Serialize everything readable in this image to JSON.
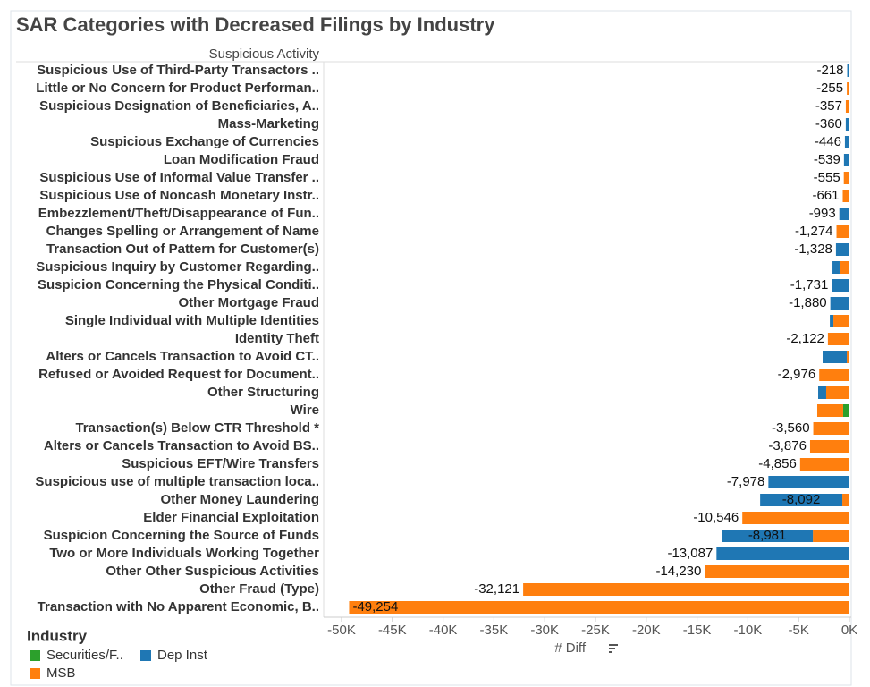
{
  "chart_data": {
    "type": "stacked_hbar",
    "title": "SAR Categories with Decreased Filings by Industry",
    "category_header": "Suspicious Activity",
    "x_label": "# Diff",
    "legend_title": "Industry",
    "categories": [
      "Suspicious Use of Third-Party Transactors ..",
      "Little or No Concern for Product Performan..",
      "Suspicious Designation of Beneficiaries, A..",
      "Mass-Marketing",
      "Suspicious Exchange of Currencies",
      "Loan Modification Fraud",
      "Suspicious Use of Informal Value Transfer ..",
      "Suspicious Use of Noncash Monetary Instr..",
      "Embezzlement/Theft/Disappearance of Fun..",
      "Changes Spelling or Arrangement of Name",
      "Transaction Out of Pattern for Customer(s)",
      "Suspicious Inquiry by Customer Regarding..",
      "Suspicion Concerning the Physical Conditi..",
      "Other Mortgage Fraud",
      "Single Individual with Multiple Identities",
      "Identity Theft",
      "Alters or Cancels Transaction to Avoid CT..",
      "Refused or Avoided Request for Document..",
      "Other Structuring",
      "Wire",
      "Transaction(s) Below CTR Threshold *",
      "Alters or Cancels Transaction to Avoid BS..",
      "Suspicious EFT/Wire Transfers",
      "Suspicious use of multiple transaction loca..",
      "Other Money Laundering",
      "Elder Financial Exploitation",
      "Suspicion Concerning the Source of Funds",
      "Two or More Individuals Working Together",
      "Other Other Suspicious Activities",
      "Other Fraud (Type)",
      "Transaction with No Apparent Economic, B.."
    ],
    "series": [
      {
        "name": "Securities/F..",
        "color": "#2ca02c",
        "values": [
          null,
          null,
          null,
          null,
          null,
          null,
          null,
          null,
          null,
          null,
          null,
          null,
          null,
          null,
          null,
          null,
          null,
          null,
          null,
          -620,
          null,
          null,
          null,
          null,
          null,
          null,
          null,
          null,
          null,
          null,
          null
        ],
        "value_labels": [
          null,
          null,
          null,
          null,
          null,
          null,
          null,
          null,
          null,
          null,
          null,
          null,
          null,
          null,
          null,
          null,
          null,
          null,
          null,
          null,
          null,
          null,
          null,
          null,
          null,
          null,
          null,
          null,
          null,
          null,
          null
        ]
      },
      {
        "name": "Dep Inst",
        "color": "#1f77b4",
        "values": [
          -218,
          null,
          null,
          -360,
          -446,
          -539,
          null,
          null,
          -993,
          null,
          -1328,
          -700,
          -1731,
          -1880,
          -350,
          null,
          -2380,
          null,
          -790,
          null,
          null,
          null,
          null,
          -7978,
          -8092,
          null,
          -8981,
          -13087,
          null,
          null,
          null
        ],
        "value_labels": [
          "-218",
          null,
          null,
          "-360",
          "-446",
          "-539",
          null,
          null,
          "-993",
          null,
          "-1,328",
          null,
          "-1,731",
          "-1,880",
          null,
          null,
          null,
          null,
          null,
          null,
          null,
          null,
          null,
          "-7,978",
          "-8,092",
          null,
          "-8,981",
          "-13,087",
          null,
          null,
          null
        ]
      },
      {
        "name": "MSB",
        "color": "#ff7f0e",
        "values": [
          null,
          -255,
          -357,
          null,
          null,
          null,
          -555,
          -661,
          null,
          -1274,
          null,
          -970,
          null,
          null,
          -1580,
          -2122,
          -260,
          -2976,
          -2290,
          -2550,
          -3560,
          -3876,
          -4856,
          null,
          -700,
          -10546,
          -3600,
          null,
          -14230,
          -32121,
          -49254
        ],
        "value_labels": [
          null,
          "-255",
          "-357",
          null,
          null,
          null,
          "-555",
          "-661",
          null,
          "-1,274",
          null,
          null,
          null,
          null,
          null,
          "-2,122",
          null,
          "-2,976",
          null,
          null,
          "-3,560",
          "-3,876",
          "-4,856",
          null,
          null,
          "-10,546",
          null,
          null,
          "-14,230",
          "-32,121",
          "-49,254"
        ]
      }
    ],
    "xlim": [
      -51760,
      0
    ],
    "xticks": [
      {
        "value": -50000,
        "label": "-50K"
      },
      {
        "value": -45000,
        "label": "-45K"
      },
      {
        "value": -40000,
        "label": "-40K"
      },
      {
        "value": -35000,
        "label": "-35K"
      },
      {
        "value": -30000,
        "label": "-30K"
      },
      {
        "value": -25000,
        "label": "-25K"
      },
      {
        "value": -20000,
        "label": "-20K"
      },
      {
        "value": -15000,
        "label": "-15K"
      },
      {
        "value": -10000,
        "label": "-10K"
      },
      {
        "value": -5000,
        "label": "-5K"
      },
      {
        "value": 0,
        "label": "0K"
      }
    ]
  }
}
